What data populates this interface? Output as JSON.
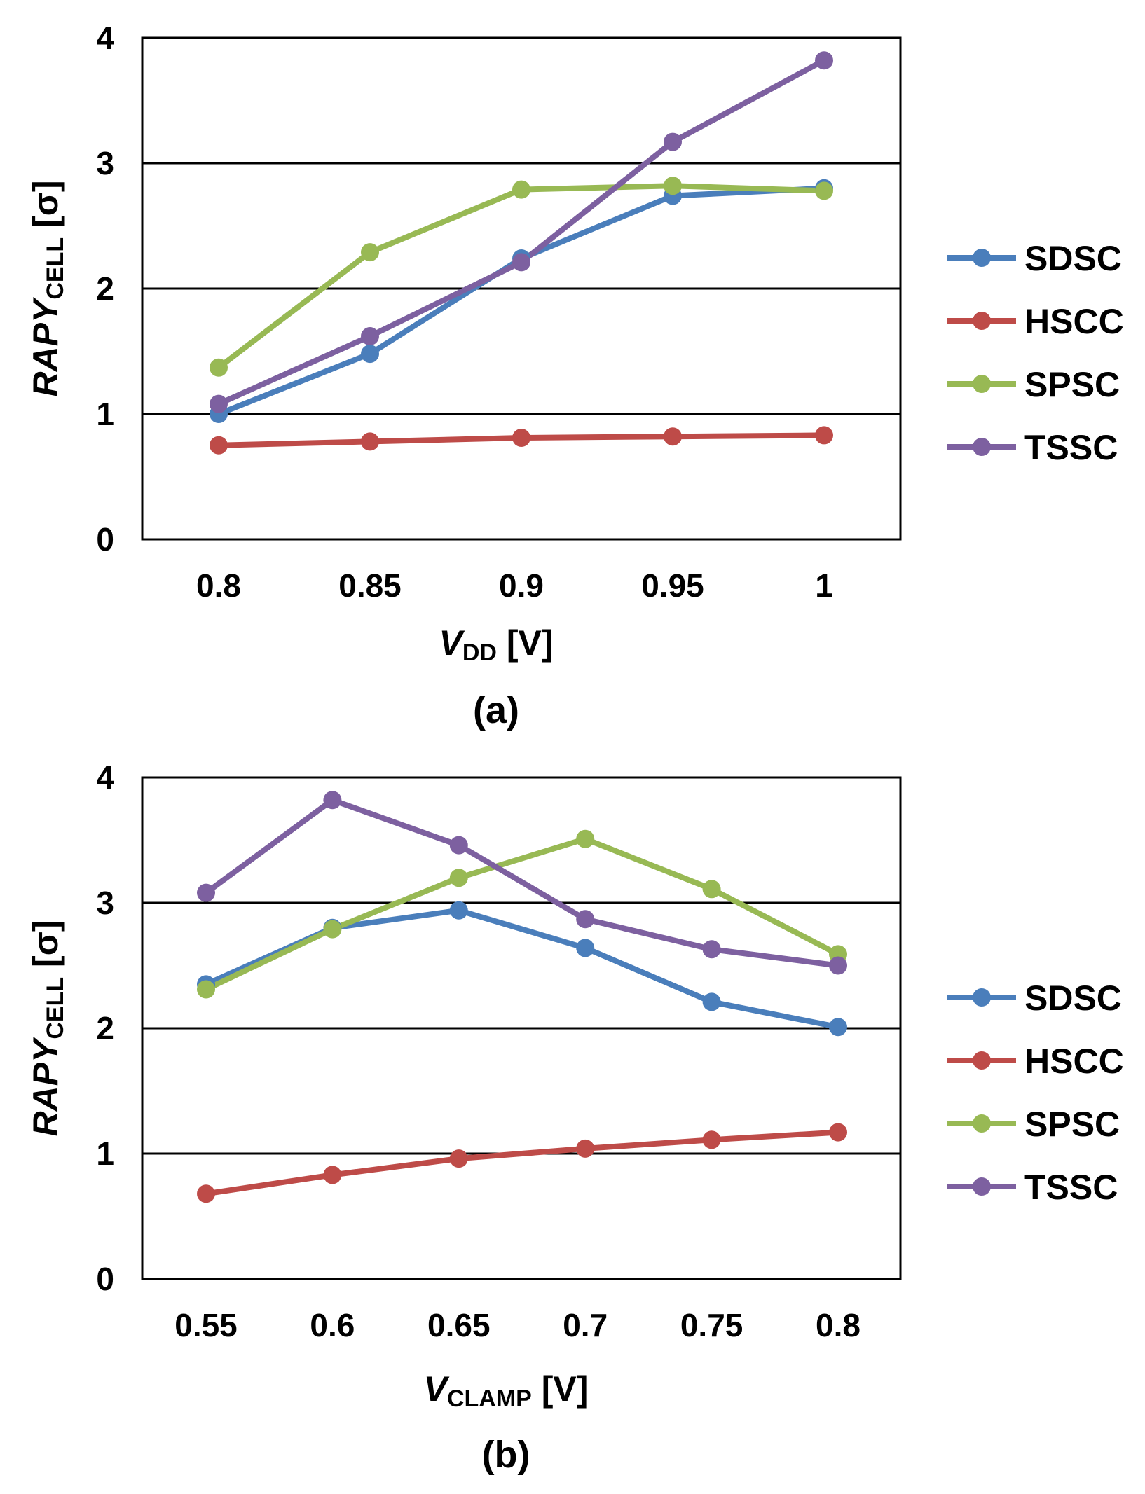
{
  "chart_data": [
    {
      "type": "line",
      "caption": "(a)",
      "categories": [
        "0.8",
        "0.85",
        "0.9",
        "0.95",
        "1"
      ],
      "x": [
        0.8,
        0.85,
        0.9,
        0.95,
        1.0
      ],
      "ylim": [
        0,
        4
      ],
      "yticks": [
        "0",
        "1",
        "2",
        "3",
        "4"
      ],
      "grid": true,
      "ylabel": {
        "main": "RAPY",
        "sub": "CELL",
        "unit": " [σ]"
      },
      "xlabel": {
        "main": "V",
        "sub": "DD",
        "unit": " [V]"
      },
      "legend_position": "right",
      "series": [
        {
          "name": "SDSC",
          "color": "#4A7EBB",
          "values": [
            1.0,
            1.48,
            2.24,
            2.74,
            2.8
          ]
        },
        {
          "name": "HSCC",
          "color": "#BE4B48",
          "values": [
            0.75,
            0.78,
            0.81,
            0.82,
            0.83
          ]
        },
        {
          "name": "SPSC",
          "color": "#98B954",
          "values": [
            1.37,
            2.29,
            2.79,
            2.82,
            2.78
          ]
        },
        {
          "name": "TSSC",
          "color": "#7D60A0",
          "values": [
            1.08,
            1.62,
            2.21,
            3.17,
            3.82
          ]
        }
      ]
    },
    {
      "type": "line",
      "caption": "(b)",
      "categories": [
        "0.55",
        "0.6",
        "0.65",
        "0.7",
        "0.75",
        "0.8"
      ],
      "x": [
        0.55,
        0.6,
        0.65,
        0.7,
        0.75,
        0.8
      ],
      "ylim": [
        0,
        4
      ],
      "yticks": [
        "0",
        "1",
        "2",
        "3",
        "4"
      ],
      "grid": true,
      "ylabel": {
        "main": "RAPY",
        "sub": "CELL",
        "unit": " [σ]"
      },
      "xlabel": {
        "main": "V",
        "sub": "CLAMP",
        "unit": " [V]"
      },
      "legend_position": "right",
      "series": [
        {
          "name": "SDSC",
          "color": "#4A7EBB",
          "values": [
            2.35,
            2.8,
            2.94,
            2.64,
            2.21,
            2.01
          ]
        },
        {
          "name": "HSCC",
          "color": "#BE4B48",
          "values": [
            0.68,
            0.83,
            0.96,
            1.04,
            1.11,
            1.17
          ]
        },
        {
          "name": "SPSC",
          "color": "#98B954",
          "values": [
            2.31,
            2.79,
            3.2,
            3.51,
            3.11,
            2.59
          ]
        },
        {
          "name": "TSSC",
          "color": "#7D60A0",
          "values": [
            3.08,
            3.82,
            3.46,
            2.87,
            2.63,
            2.5
          ]
        }
      ]
    }
  ]
}
